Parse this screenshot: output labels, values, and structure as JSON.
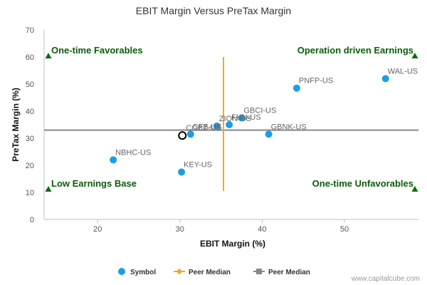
{
  "chart_data": {
    "type": "scatter",
    "title": "EBIT Margin Versus PreTax Margin",
    "xlabel": "EBIT Margin (%)",
    "ylabel": "PreTax Margin (%)",
    "xlim": [
      13.5,
      59
    ],
    "ylim": [
      0,
      70
    ],
    "x_ticks": [
      20,
      30,
      40,
      50
    ],
    "y_ticks": [
      0,
      10,
      20,
      30,
      40,
      50,
      60,
      70
    ],
    "grid": false,
    "series": [
      {
        "name": "Symbol",
        "color": "#1a9ee8",
        "points": [
          {
            "label": "WAL-US",
            "x": 55.0,
            "y": 52.0
          },
          {
            "label": "PNFP-US",
            "x": 44.2,
            "y": 48.5
          },
          {
            "label": "GBCI-US",
            "x": 37.5,
            "y": 37.5
          },
          {
            "label": "FHN-US",
            "x": 36.0,
            "y": 35.0
          },
          {
            "label": "ZION-US",
            "x": 34.5,
            "y": 34.5
          },
          {
            "label": "GBNK-US",
            "x": 40.8,
            "y": 31.5
          },
          {
            "label": "CFB-US",
            "x": 31.3,
            "y": 31.5
          },
          {
            "label": "NBHC-US",
            "x": 21.9,
            "y": 22.0
          },
          {
            "label": "KEY-US",
            "x": 30.2,
            "y": 17.5
          }
        ]
      }
    ],
    "highlight": {
      "label": "COBZ-US",
      "x": 30.3,
      "y": 31.0
    },
    "peer_median_x": {
      "name": "Peer Median",
      "value": 35.3,
      "y_range": [
        10.5,
        60
      ],
      "color": "#f5a623"
    },
    "peer_median_y": {
      "name": "Peer Median",
      "value": 33.0,
      "color": "#888888"
    },
    "quadrants": {
      "top_left": "One-time Favorables",
      "top_right": "Operation driven Earnings",
      "bottom_left": "Low Earnings Base",
      "bottom_right": "One-time Unfavorables"
    },
    "quadrant_marker_color": "#0a6e0a",
    "legend_position": "bottom",
    "credit": "www.capitalcube.com"
  }
}
